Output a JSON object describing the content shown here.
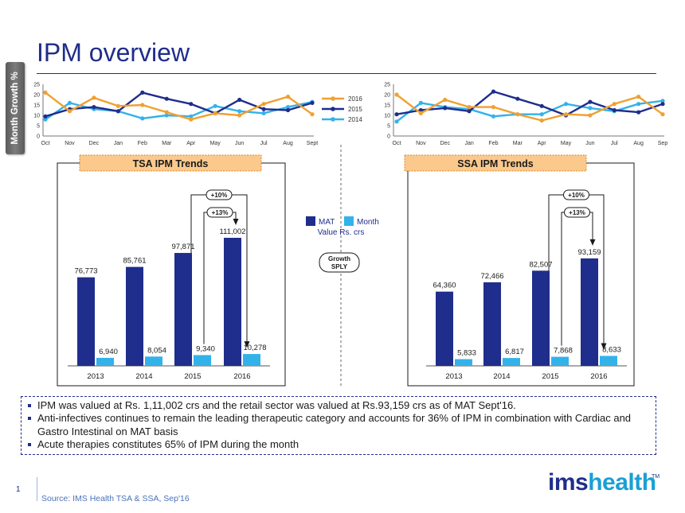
{
  "sidebar": {
    "tab_label": "Month Growth %"
  },
  "header": {
    "title": "IPM overview"
  },
  "colors": {
    "navy": "#1f2d8c",
    "cyan": "#33b2ea",
    "orange": "#f0a030",
    "box_fill": "#fbc98c",
    "box_border": "#d98a2a"
  },
  "legend_lines": [
    {
      "label": "2016",
      "color": "#f0a030"
    },
    {
      "label": "2015",
      "color": "#1f2d8c"
    },
    {
      "label": "2014",
      "color": "#33b2ea"
    }
  ],
  "legend_bars": {
    "mat": "MAT",
    "month": "Month",
    "unit": "Value Rs. crs"
  },
  "growth_badge": [
    "Growth",
    "SPLY"
  ],
  "summary": [
    "IPM was valued at Rs. 1,11,002 crs and the retail sector was valued at Rs.93,159 crs as of MAT Sept'16.",
    "Anti-infectives continues to remain the leading therapeutic category and accounts for 36% of IPM in combination with Cardiac and Gastro Intestinal on MAT basis",
    "Acute therapies constitutes 65% of IPM during the month"
  ],
  "footer": {
    "page_number": "1",
    "source": "Source: IMS Health TSA & SSA, Sep'16",
    "logo_a": "ims",
    "logo_b": "health",
    "logo_tm": "TM"
  },
  "chart_data": [
    {
      "type": "line",
      "panel": "left",
      "categories": [
        "Oct",
        "Nov",
        "Dec",
        "Jan",
        "Feb",
        "Mar",
        "Apr",
        "May",
        "Jun",
        "Jul",
        "Aug",
        "Sept"
      ],
      "ylim": [
        0,
        25
      ],
      "yticks": [
        0,
        5,
        10,
        15,
        20,
        25
      ],
      "grid": false,
      "series": [
        {
          "name": "2016",
          "values": [
            21,
            12,
            18.5,
            14.5,
            15,
            11.5,
            8,
            11,
            10,
            15.5,
            19,
            10.5
          ]
        },
        {
          "name": "2015",
          "values": [
            9.5,
            13,
            14,
            12,
            21,
            18,
            15.5,
            11,
            17.5,
            13,
            12.5,
            16
          ]
        },
        {
          "name": "2014",
          "values": [
            8,
            16,
            13,
            12,
            8.5,
            10,
            9.5,
            14.5,
            12,
            11,
            14,
            16.5
          ]
        }
      ]
    },
    {
      "type": "line",
      "panel": "right",
      "categories": [
        "Oct",
        "Nov",
        "Dec",
        "Jan",
        "Feb",
        "Mar",
        "Apr",
        "May",
        "Jun",
        "Jul",
        "Aug",
        "Sep"
      ],
      "ylim": [
        0,
        25
      ],
      "yticks": [
        0,
        5,
        10,
        15,
        20,
        25
      ],
      "grid": false,
      "series": [
        {
          "name": "2016",
          "values": [
            20,
            11,
            17.5,
            14,
            14,
            10.5,
            7.5,
            10.5,
            10,
            15.5,
            19,
            10.5
          ]
        },
        {
          "name": "2015",
          "values": [
            10.5,
            12.5,
            13.5,
            12,
            21.5,
            18,
            14.5,
            10,
            16.5,
            12.5,
            11.5,
            15.5
          ]
        },
        {
          "name": "2014",
          "values": [
            7,
            16,
            14,
            13,
            9.5,
            10.5,
            10.5,
            15.5,
            13.5,
            12,
            15.5,
            17
          ]
        }
      ]
    },
    {
      "type": "bar",
      "panel": "left",
      "title": "TSA IPM Trends",
      "categories": [
        "2013",
        "2014",
        "2015",
        "2016"
      ],
      "series": [
        {
          "name": "MAT",
          "values": [
            76773,
            85761,
            97871,
            111002
          ],
          "labels": [
            "76,773",
            "85,761",
            "97,871",
            "111,002"
          ]
        },
        {
          "name": "Month",
          "values": [
            6940,
            8054,
            9340,
            10278
          ],
          "labels": [
            "6,940",
            "8,054",
            "9,340",
            "10,278"
          ]
        }
      ],
      "annotations": [
        {
          "text": "+10%",
          "from": "2015 MAT",
          "to": "2016 Month"
        },
        {
          "text": "+13%",
          "from": "2015 Month",
          "to": "2016 MAT"
        }
      ]
    },
    {
      "type": "bar",
      "panel": "right",
      "title": "SSA IPM Trends",
      "categories": [
        "2013",
        "2014",
        "2015",
        "2016"
      ],
      "series": [
        {
          "name": "MAT",
          "values": [
            64360,
            72466,
            82507,
            93159
          ],
          "labels": [
            "64,360",
            "72,466",
            "82,507",
            "93,159"
          ]
        },
        {
          "name": "Month",
          "values": [
            5833,
            6817,
            7868,
            8633
          ],
          "labels": [
            "5,833",
            "6,817",
            "7,868",
            "8,633"
          ]
        }
      ],
      "annotations": [
        {
          "text": "+10%",
          "from": "2015 MAT",
          "to": "2016 Month"
        },
        {
          "text": "+13%",
          "from": "2015 Month",
          "to": "2016 MAT"
        }
      ]
    }
  ]
}
